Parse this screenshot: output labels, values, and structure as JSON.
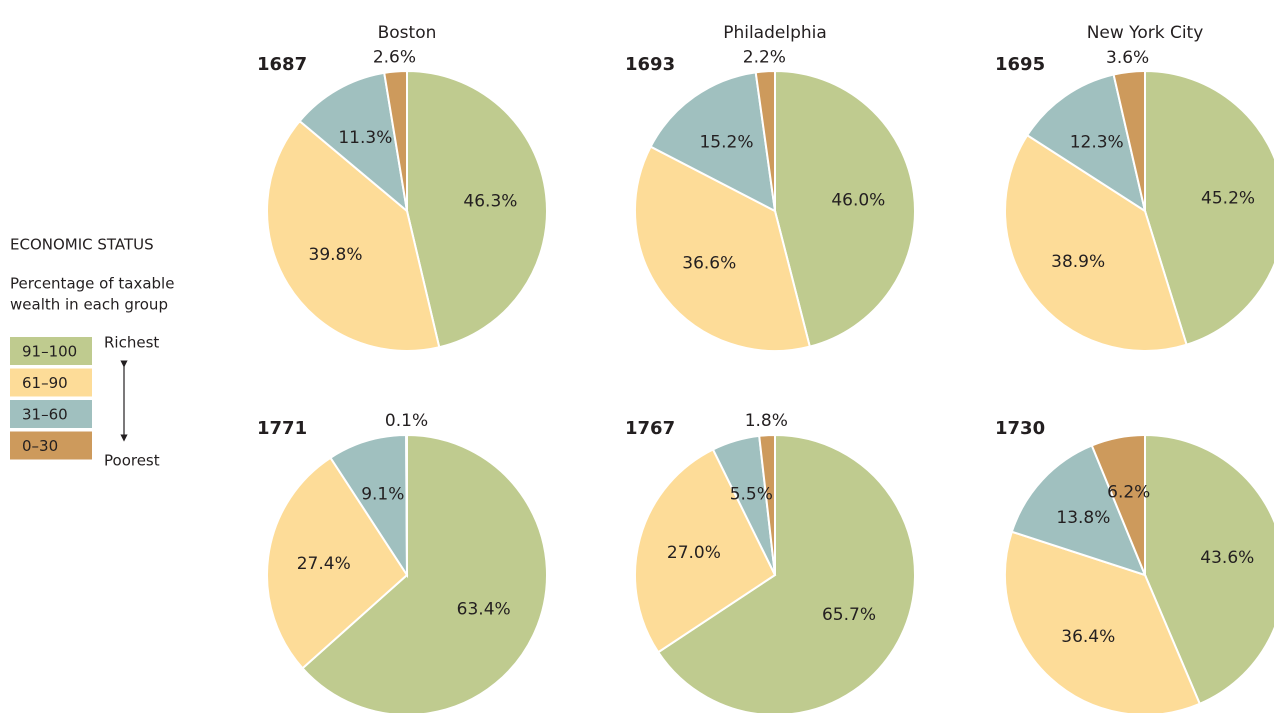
{
  "column_titles": [
    "Boston",
    "Philadelphia",
    "New York City"
  ],
  "legend": {
    "title": "ECONOMIC STATUS",
    "subtitle": [
      "Percentage of taxable",
      "wealth in each group"
    ],
    "items": [
      {
        "label": "91–100",
        "color": "#bfcb8f"
      },
      {
        "label": "61–90",
        "color": "#fddc98"
      },
      {
        "label": "31–60",
        "color": "#a0c0bf"
      },
      {
        "label": "0–30",
        "color": "#cd9a5c"
      }
    ],
    "top_label": "Richest",
    "bottom_label": "Poorest"
  },
  "chart_data": [
    {
      "type": "pie",
      "title": "1687",
      "values": [
        46.3,
        39.8,
        11.3,
        2.6
      ],
      "value_labels": [
        "46.3%",
        "39.8%",
        "11.3%",
        "2.6%"
      ]
    },
    {
      "type": "pie",
      "title": "1693",
      "values": [
        46.0,
        36.6,
        15.2,
        2.2
      ],
      "value_labels": [
        "46.0%",
        "36.6%",
        "15.2%",
        "2.2%"
      ]
    },
    {
      "type": "pie",
      "title": "1695",
      "values": [
        45.2,
        38.9,
        12.3,
        3.6
      ],
      "value_labels": [
        "45.2%",
        "38.9%",
        "12.3%",
        "3.6%"
      ]
    },
    {
      "type": "pie",
      "title": "1771",
      "values": [
        63.4,
        27.4,
        9.1,
        0.1
      ],
      "value_labels": [
        "63.4%",
        "27.4%",
        "9.1%",
        "0.1%"
      ]
    },
    {
      "type": "pie",
      "title": "1767",
      "values": [
        65.7,
        27.0,
        5.5,
        1.8
      ],
      "value_labels": [
        "65.7%",
        "27.0%",
        "5.5%",
        "1.8%"
      ]
    },
    {
      "type": "pie",
      "title": "1730",
      "values": [
        43.6,
        36.4,
        13.8,
        6.2
      ],
      "value_labels": [
        "43.6%",
        "36.4%",
        "13.8%",
        "6.2%"
      ]
    }
  ]
}
